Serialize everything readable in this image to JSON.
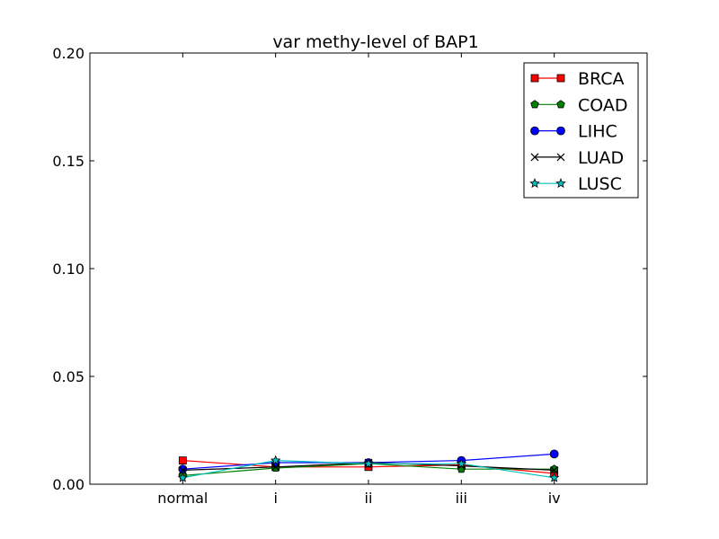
{
  "chart_data": {
    "type": "line",
    "title": "var methy-level of BAP1",
    "xlabel": "",
    "ylabel": "",
    "categories": [
      "normal",
      "i",
      "ii",
      "iii",
      "iv"
    ],
    "ylim": [
      0.0,
      0.2
    ],
    "yticks": [
      "0.00",
      "0.05",
      "0.10",
      "0.15",
      "0.20"
    ],
    "grid": false,
    "legend_position": "top-right",
    "series": [
      {
        "name": "BRCA",
        "color": "#ff0000",
        "marker": "square",
        "values": [
          0.011,
          0.008,
          0.008,
          0.009,
          0.005
        ]
      },
      {
        "name": "COAD",
        "color": "#008000",
        "marker": "pentagon",
        "values": [
          0.004,
          0.0075,
          0.0095,
          0.007,
          0.007
        ]
      },
      {
        "name": "LIHC",
        "color": "#0000ff",
        "marker": "circle",
        "values": [
          0.007,
          0.01,
          0.01,
          0.011,
          0.014
        ]
      },
      {
        "name": "LUAD",
        "color": "#000000",
        "marker": "x",
        "values": [
          0.0065,
          0.008,
          0.01,
          0.0085,
          0.0065
        ]
      },
      {
        "name": "LUSC",
        "color": "#00bfbf",
        "marker": "star",
        "values": [
          0.003,
          0.011,
          0.0095,
          0.0095,
          0.003
        ]
      }
    ]
  }
}
